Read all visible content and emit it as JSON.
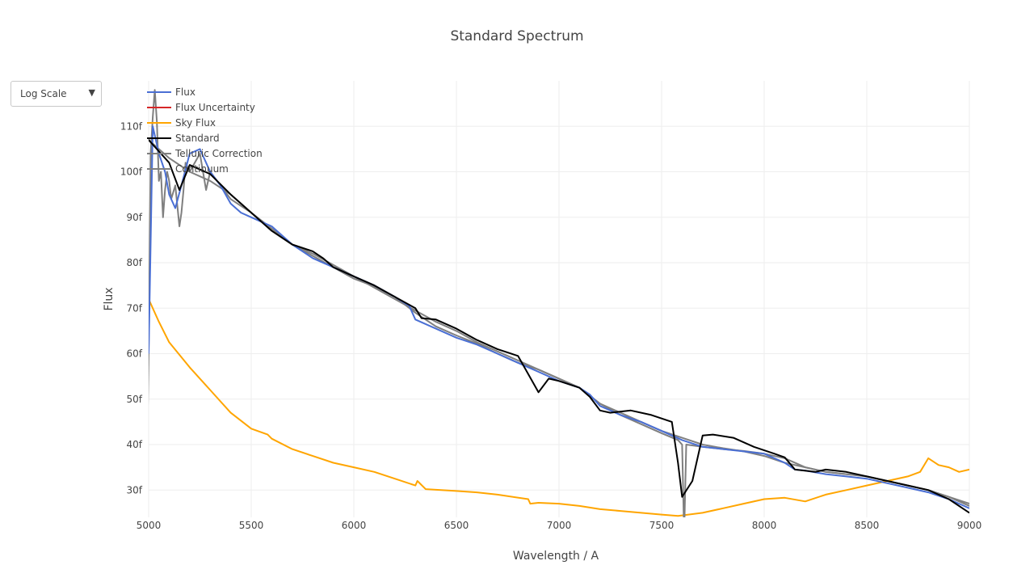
{
  "controls": {
    "scale_dropdown": {
      "selected": "Log Scale",
      "arrow_icon": "triangle-down-icon"
    }
  },
  "chart_data": {
    "type": "line",
    "title": "Standard Spectrum",
    "xlabel": "Wavelength / A",
    "ylabel": "Flux",
    "xlim": [
      5000,
      9000
    ],
    "ylim": [
      24,
      120
    ],
    "x_ticks": [
      5000,
      5500,
      6000,
      6500,
      7000,
      7500,
      8000,
      8500,
      9000
    ],
    "x_tick_labels": [
      "5000",
      "5500",
      "6000",
      "6500",
      "7000",
      "7500",
      "8000",
      "8500",
      "9000"
    ],
    "y_ticks": [
      30,
      40,
      50,
      60,
      70,
      80,
      90,
      100,
      110
    ],
    "y_tick_labels": [
      "30f",
      "40f",
      "50f",
      "60f",
      "70f",
      "80f",
      "90f",
      "100f",
      "110f"
    ],
    "grid": true,
    "legend_position": "top-left",
    "series": [
      {
        "name": "Flux",
        "color": "#4a6fd4",
        "points": [
          [
            5000,
            60
          ],
          [
            5020,
            110
          ],
          [
            5050,
            104
          ],
          [
            5080,
            100
          ],
          [
            5100,
            95
          ],
          [
            5130,
            92
          ],
          [
            5160,
            97
          ],
          [
            5200,
            104
          ],
          [
            5250,
            105
          ],
          [
            5300,
            100
          ],
          [
            5350,
            97
          ],
          [
            5400,
            93
          ],
          [
            5450,
            91
          ],
          [
            5500,
            90
          ],
          [
            5550,
            89
          ],
          [
            5600,
            88
          ],
          [
            5650,
            86
          ],
          [
            5700,
            84
          ],
          [
            5800,
            81
          ],
          [
            5900,
            79
          ],
          [
            6000,
            77
          ],
          [
            6100,
            75
          ],
          [
            6200,
            72.5
          ],
          [
            6270,
            70.5
          ],
          [
            6300,
            67.5
          ],
          [
            6400,
            65.5
          ],
          [
            6500,
            63.5
          ],
          [
            6600,
            62
          ],
          [
            6700,
            60
          ],
          [
            6800,
            58
          ],
          [
            6900,
            56
          ],
          [
            7000,
            54
          ],
          [
            7100,
            52.5
          ],
          [
            7150,
            51
          ],
          [
            7200,
            48.5
          ],
          [
            7300,
            46.5
          ],
          [
            7400,
            45
          ],
          [
            7500,
            43
          ],
          [
            7600,
            41
          ],
          [
            7700,
            39.5
          ],
          [
            7800,
            39
          ],
          [
            7900,
            38.5
          ],
          [
            8000,
            38
          ],
          [
            8100,
            36
          ],
          [
            8150,
            34.5
          ],
          [
            8200,
            34.3
          ],
          [
            8300,
            33.5
          ],
          [
            8400,
            33
          ],
          [
            8500,
            32.5
          ],
          [
            8600,
            31.5
          ],
          [
            8700,
            30.5
          ],
          [
            8800,
            29.5
          ],
          [
            8900,
            28
          ],
          [
            9000,
            26
          ]
        ]
      },
      {
        "name": "Flux Uncertainty",
        "color": "#d62728",
        "points": []
      },
      {
        "name": "Sky Flux",
        "color": "#ffa500",
        "points": [
          [
            5000,
            72
          ],
          [
            5050,
            67
          ],
          [
            5100,
            62.5
          ],
          [
            5200,
            57
          ],
          [
            5300,
            52
          ],
          [
            5400,
            47
          ],
          [
            5500,
            43.5
          ],
          [
            5580,
            42.2
          ],
          [
            5600,
            41.3
          ],
          [
            5700,
            39
          ],
          [
            5800,
            37.5
          ],
          [
            5900,
            36
          ],
          [
            6000,
            35
          ],
          [
            6100,
            34
          ],
          [
            6200,
            32.5
          ],
          [
            6300,
            31
          ],
          [
            6310,
            32
          ],
          [
            6350,
            30.2
          ],
          [
            6500,
            29.8
          ],
          [
            6600,
            29.5
          ],
          [
            6700,
            29
          ],
          [
            6850,
            28
          ],
          [
            6860,
            27
          ],
          [
            6900,
            27.2
          ],
          [
            7000,
            27
          ],
          [
            7100,
            26.5
          ],
          [
            7200,
            25.8
          ],
          [
            7300,
            25.4
          ],
          [
            7400,
            25
          ],
          [
            7500,
            24.6
          ],
          [
            7580,
            24.3
          ],
          [
            7700,
            25
          ],
          [
            7800,
            26
          ],
          [
            7900,
            27
          ],
          [
            8000,
            28
          ],
          [
            8100,
            28.3
          ],
          [
            8200,
            27.5
          ],
          [
            8300,
            29
          ],
          [
            8400,
            30
          ],
          [
            8500,
            31
          ],
          [
            8600,
            32
          ],
          [
            8700,
            33
          ],
          [
            8760,
            34
          ],
          [
            8800,
            37
          ],
          [
            8850,
            35.5
          ],
          [
            8900,
            35
          ],
          [
            8950,
            34
          ],
          [
            9000,
            34.5
          ]
        ]
      },
      {
        "name": "Standard",
        "color": "#000000",
        "points": [
          [
            4970,
            110
          ],
          [
            5000,
            107
          ],
          [
            5100,
            102
          ],
          [
            5150,
            96
          ],
          [
            5200,
            101.5
          ],
          [
            5300,
            99.5
          ],
          [
            5400,
            95
          ],
          [
            5500,
            91
          ],
          [
            5600,
            87
          ],
          [
            5700,
            84
          ],
          [
            5800,
            82.5
          ],
          [
            5850,
            81
          ],
          [
            5900,
            79
          ],
          [
            6000,
            77
          ],
          [
            6100,
            75
          ],
          [
            6200,
            72.5
          ],
          [
            6300,
            70
          ],
          [
            6330,
            67.8
          ],
          [
            6400,
            67.5
          ],
          [
            6500,
            65.5
          ],
          [
            6600,
            63
          ],
          [
            6700,
            61
          ],
          [
            6800,
            59.5
          ],
          [
            6900,
            51.5
          ],
          [
            6950,
            54.5
          ],
          [
            7000,
            54
          ],
          [
            7100,
            52.5
          ],
          [
            7150,
            50.5
          ],
          [
            7200,
            47.5
          ],
          [
            7250,
            47
          ],
          [
            7350,
            47.5
          ],
          [
            7450,
            46.5
          ],
          [
            7550,
            45
          ],
          [
            7580,
            36
          ],
          [
            7600,
            28.5
          ],
          [
            7650,
            32
          ],
          [
            7700,
            42
          ],
          [
            7750,
            42.2
          ],
          [
            7850,
            41.5
          ],
          [
            7950,
            39.5
          ],
          [
            8050,
            38
          ],
          [
            8100,
            37.2
          ],
          [
            8150,
            34.5
          ],
          [
            8250,
            34
          ],
          [
            8300,
            34.5
          ],
          [
            8400,
            34
          ],
          [
            8500,
            33
          ],
          [
            8600,
            32
          ],
          [
            8700,
            31
          ],
          [
            8800,
            30
          ],
          [
            8900,
            28
          ],
          [
            9000,
            25
          ]
        ]
      },
      {
        "name": "Telluric Correction",
        "color": "#7f7f7f",
        "points": [
          [
            4995,
            45
          ],
          [
            5000,
            60
          ],
          [
            5010,
            104
          ],
          [
            5020,
            112
          ],
          [
            5030,
            118
          ],
          [
            5040,
            111
          ],
          [
            5050,
            98
          ],
          [
            5060,
            100
          ],
          [
            5070,
            90
          ],
          [
            5080,
            96
          ],
          [
            5090,
            100
          ],
          [
            5100,
            98
          ],
          [
            5110,
            94
          ],
          [
            5130,
            97
          ],
          [
            5150,
            88
          ],
          [
            5160,
            91
          ],
          [
            5170,
            96
          ],
          [
            5180,
            102
          ],
          [
            5200,
            100
          ],
          [
            5250,
            104
          ],
          [
            5280,
            96
          ],
          [
            5300,
            100
          ],
          [
            5350,
            97
          ],
          [
            5400,
            94
          ],
          [
            5500,
            91
          ],
          [
            5600,
            87
          ],
          [
            5700,
            84
          ],
          [
            5800,
            81.5
          ],
          [
            5900,
            79
          ],
          [
            6000,
            76.5
          ],
          [
            6100,
            74.8
          ],
          [
            6200,
            72.5
          ],
          [
            6300,
            69
          ],
          [
            6400,
            66
          ],
          [
            6500,
            64
          ],
          [
            6600,
            62.2
          ],
          [
            6700,
            60
          ],
          [
            6800,
            58
          ],
          [
            6900,
            56.5
          ],
          [
            7000,
            54.5
          ],
          [
            7100,
            52.5
          ],
          [
            7200,
            49
          ],
          [
            7300,
            46.5
          ],
          [
            7400,
            44.5
          ],
          [
            7500,
            42.5
          ],
          [
            7580,
            41
          ],
          [
            7600,
            40
          ],
          [
            7610,
            20
          ],
          [
            7620,
            40
          ],
          [
            7700,
            39.5
          ],
          [
            7800,
            39
          ],
          [
            7900,
            38.6
          ],
          [
            8000,
            38
          ],
          [
            8100,
            37
          ],
          [
            8200,
            35
          ],
          [
            8300,
            34
          ],
          [
            8400,
            33.5
          ],
          [
            8500,
            33
          ],
          [
            8600,
            32
          ],
          [
            8700,
            31
          ],
          [
            8800,
            30
          ],
          [
            8900,
            28.5
          ],
          [
            9000,
            27
          ]
        ]
      },
      {
        "name": "Continuum",
        "color": "#808080",
        "points": [
          [
            5000,
            107
          ],
          [
            5100,
            103
          ],
          [
            5200,
            100
          ],
          [
            5300,
            98
          ],
          [
            5400,
            95
          ],
          [
            5500,
            91
          ],
          [
            5600,
            87.5
          ],
          [
            5700,
            84
          ],
          [
            5800,
            82
          ],
          [
            5900,
            79.5
          ],
          [
            6000,
            77
          ],
          [
            6100,
            74.5
          ],
          [
            6200,
            72
          ],
          [
            6300,
            69.5
          ],
          [
            6400,
            67
          ],
          [
            6500,
            65
          ],
          [
            6600,
            62.5
          ],
          [
            6700,
            60.5
          ],
          [
            6800,
            58.5
          ],
          [
            6900,
            56.5
          ],
          [
            7000,
            54.5
          ],
          [
            7100,
            52.5
          ],
          [
            7200,
            49
          ],
          [
            7300,
            47
          ],
          [
            7400,
            45
          ],
          [
            7500,
            43
          ],
          [
            7600,
            41.5
          ],
          [
            7700,
            40
          ],
          [
            7800,
            39.2
          ],
          [
            7900,
            38.5
          ],
          [
            8000,
            37.5
          ],
          [
            8100,
            36
          ],
          [
            8200,
            35
          ],
          [
            8300,
            34
          ],
          [
            8400,
            33.5
          ],
          [
            8500,
            33
          ],
          [
            8600,
            32
          ],
          [
            8700,
            31
          ],
          [
            8800,
            30
          ],
          [
            8900,
            28.5
          ],
          [
            9000,
            26.5
          ]
        ]
      }
    ]
  }
}
